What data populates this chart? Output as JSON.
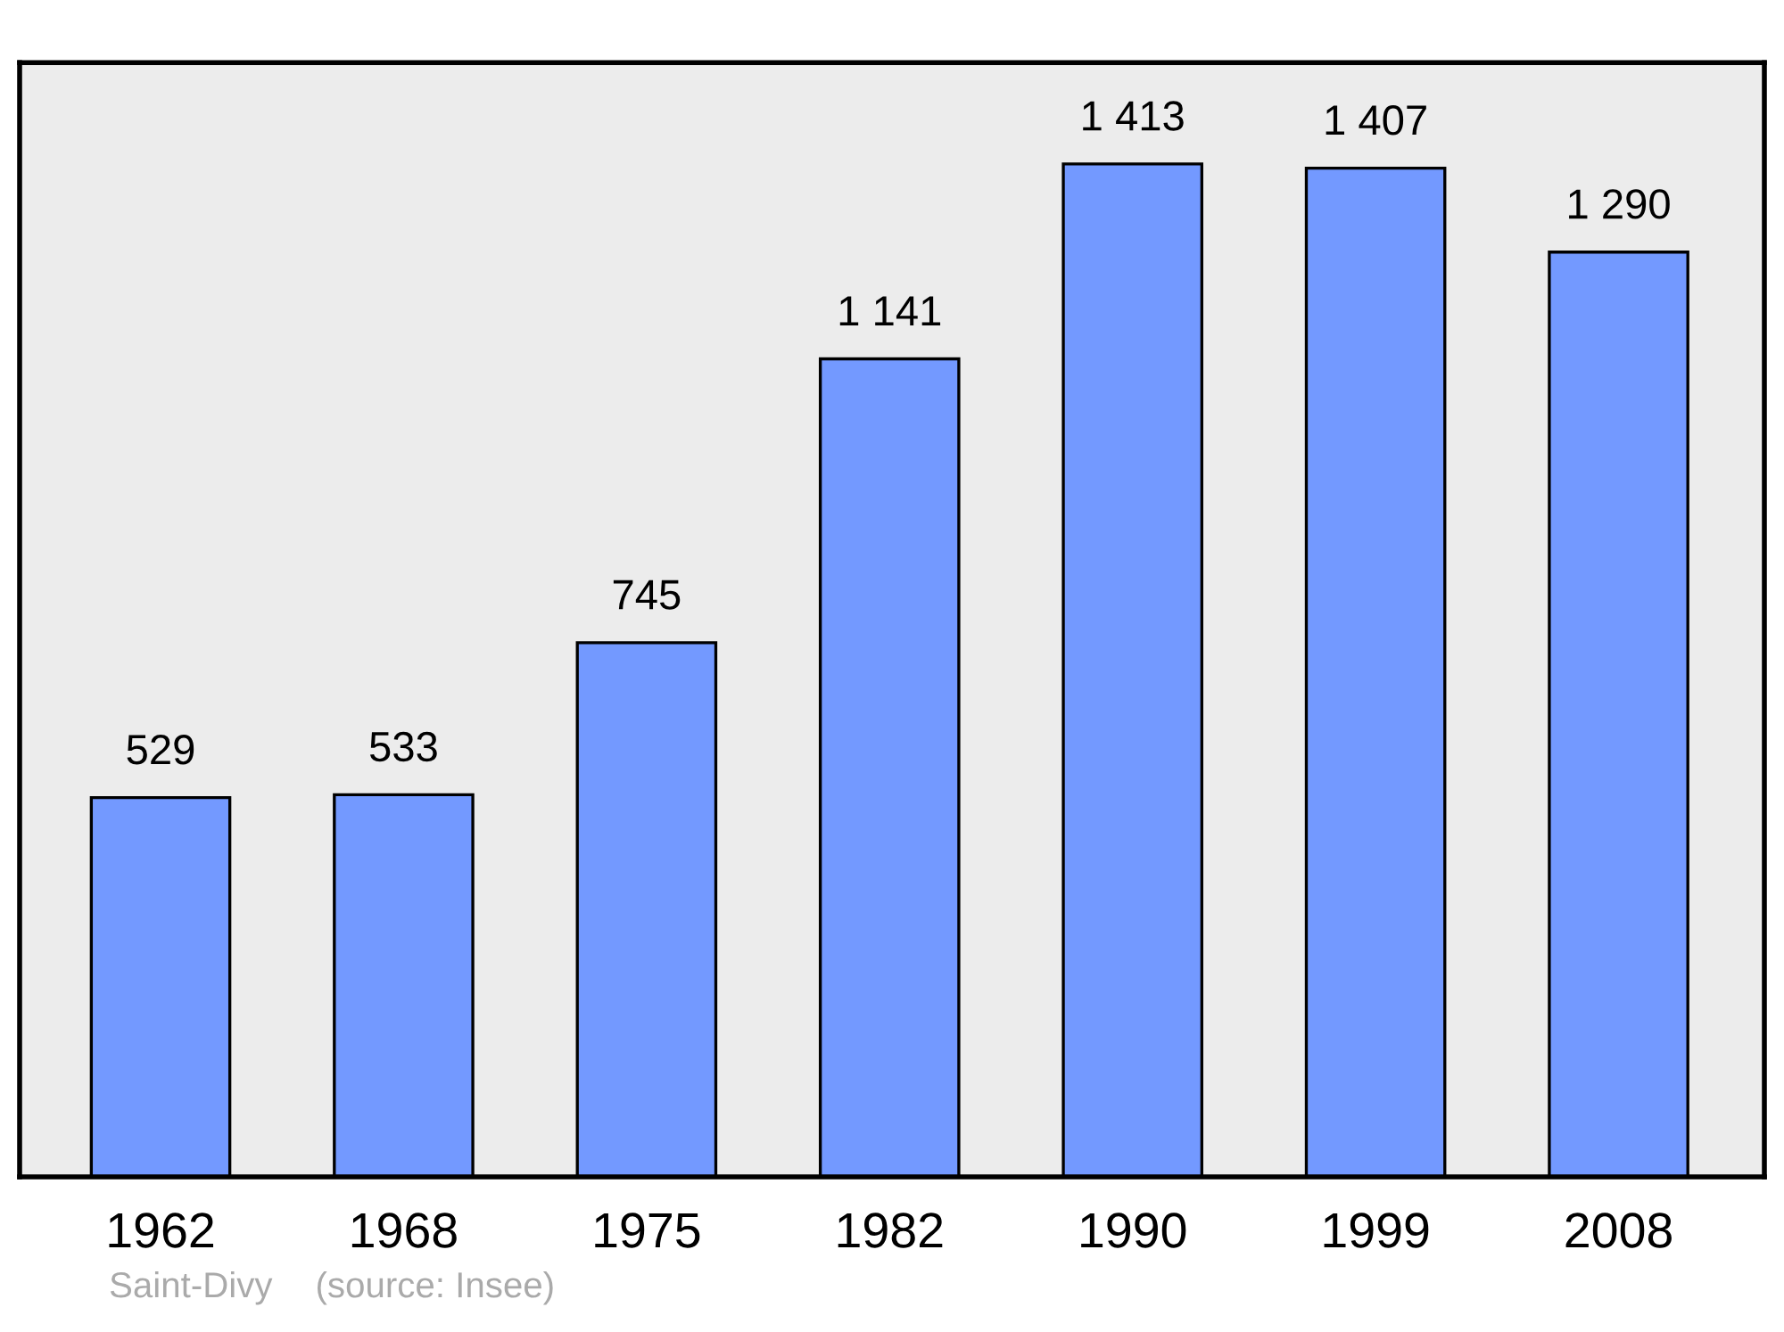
{
  "chart_data": {
    "type": "bar",
    "categories": [
      "1962",
      "1968",
      "1975",
      "1982",
      "1990",
      "1999",
      "2008"
    ],
    "values": [
      529,
      533,
      745,
      1141,
      1413,
      1407,
      1290
    ],
    "value_labels": [
      "529",
      "533",
      "745",
      "1 141",
      "1 413",
      "1 407",
      "1 290"
    ],
    "color": "#7399ff",
    "grid": false,
    "legend": false,
    "annotations": [
      "Saint-Divy",
      "(source: Insee)"
    ]
  }
}
